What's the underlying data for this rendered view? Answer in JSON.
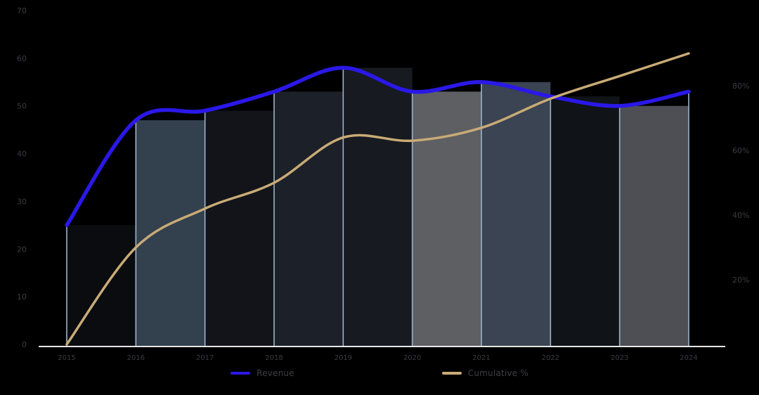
{
  "chart_data": {
    "type": "line",
    "title": "",
    "categories": [
      "2015",
      "2016",
      "2017",
      "2018",
      "2019",
      "2020",
      "2021",
      "2022",
      "2023",
      "2024"
    ],
    "series": [
      {
        "name": "Revenue",
        "axis": "left",
        "color": "#2a18e8",
        "line_width": 5.5,
        "values": [
          25,
          47,
          49,
          53,
          58,
          53,
          55,
          52,
          50,
          53
        ]
      },
      {
        "name": "Cumulative %",
        "axis": "right",
        "color": "#c9ab76",
        "line_width": 3.5,
        "values": [
          0,
          30,
          42,
          50,
          64,
          63,
          67,
          76,
          83,
          90
        ]
      }
    ],
    "bar_colors": [
      "#0a0c10",
      "#33404e",
      "#121419",
      "#1c2028",
      "#171a21",
      "#5d5f63",
      "#3a4452",
      "#101318",
      "#4d4f54"
    ],
    "left_axis": {
      "min": 0,
      "max": 70,
      "step": 10,
      "values": [
        0,
        10,
        20,
        30,
        40,
        50,
        60,
        70
      ],
      "ticks": [
        "0",
        "10",
        "20",
        "30",
        "40",
        "50",
        "60",
        "70"
      ]
    },
    "right_axis": {
      "values": [
        20,
        40,
        60,
        80
      ],
      "ticks": [
        "20%",
        "40%",
        "60%",
        "80%"
      ]
    },
    "grid": false,
    "legend_position": "bottom",
    "legend": [
      {
        "label": "Revenue"
      },
      {
        "label": "Cumulative %"
      }
    ],
    "colors": {
      "background": "#000000",
      "axis_line": "#e6e6e6",
      "drop_line": "#9db4c9",
      "tick_text": "#3c3c41",
      "legend_text": "#3f3f45"
    }
  }
}
